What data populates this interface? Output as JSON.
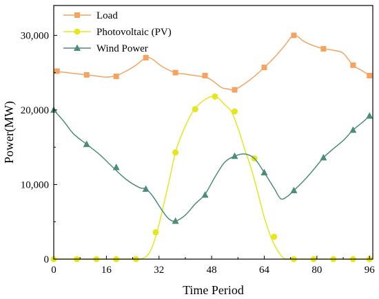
{
  "chart_data": {
    "type": "line",
    "xlabel": "Time Period",
    "ylabel": "Power(MW)",
    "xlim": [
      0,
      97
    ],
    "ylim": [
      0,
      34000
    ],
    "xticks": [
      0,
      16,
      32,
      48,
      64,
      80,
      96
    ],
    "xtick_labels": [
      "0",
      "16",
      "32",
      "48",
      "64",
      "80",
      "96"
    ],
    "yticks": [
      0,
      10000,
      20000,
      30000
    ],
    "ytick_labels": [
      "0",
      "10,000",
      "20,000",
      "30,000"
    ],
    "grid": false,
    "legend_position": "top-left",
    "series": [
      {
        "name": "Load",
        "color": "#F4A460",
        "marker": "square",
        "line": {
          "x": [
            0,
            4,
            8,
            12,
            16,
            19,
            22,
            25,
            28,
            30,
            33,
            37,
            40,
            43,
            46,
            48,
            51,
            53,
            55,
            58,
            61,
            64,
            67,
            70,
            73,
            76,
            79,
            82,
            85,
            88,
            91,
            94,
            96
          ],
          "y": [
            25200,
            25000,
            24800,
            24600,
            24400,
            24600,
            25200,
            26000,
            27000,
            26800,
            25800,
            25000,
            24800,
            24600,
            24400,
            24000,
            23000,
            22800,
            22700,
            23500,
            24500,
            25700,
            27000,
            28500,
            30000,
            29200,
            28600,
            28200,
            28000,
            27600,
            26000,
            25200,
            24600
          ]
        },
        "markers": {
          "x": [
            1,
            10,
            19,
            28,
            37,
            46,
            55,
            64,
            73,
            82,
            91,
            96
          ],
          "y": [
            25200,
            24700,
            24500,
            27000,
            25000,
            24600,
            22700,
            25700,
            30000,
            28200,
            26000,
            24600
          ]
        }
      },
      {
        "name": "Photovoltaic (PV)",
        "color": "#E6E61E",
        "marker": "circle",
        "line": {
          "x": [
            0,
            10,
            20,
            25,
            27,
            29,
            31,
            33,
            35,
            37,
            39,
            42,
            44,
            46,
            48,
            50,
            52,
            54,
            56,
            58,
            60,
            62,
            64,
            66,
            68,
            70,
            72,
            80,
            90,
            96
          ],
          "y": [
            0,
            0,
            0,
            0,
            100,
            800,
            3000,
            6500,
            10300,
            14300,
            16800,
            19600,
            20700,
            21400,
            21800,
            21600,
            20700,
            19800,
            17600,
            14800,
            12200,
            9000,
            5600,
            3000,
            1200,
            100,
            0,
            0,
            0,
            0
          ]
        },
        "markers": {
          "x": [
            0,
            7,
            13,
            19,
            25,
            31,
            37,
            43,
            49,
            55,
            61,
            67,
            73,
            79,
            85,
            91,
            96
          ],
          "y": [
            0,
            0,
            0,
            0,
            0,
            3600,
            14300,
            20100,
            21800,
            19800,
            13500,
            3000,
            0,
            0,
            0,
            0,
            0
          ]
        }
      },
      {
        "name": "Wind Power",
        "color": "#4C8C7A",
        "marker": "triangle",
        "line": {
          "x": [
            0,
            3,
            6,
            10,
            14,
            18,
            22,
            26,
            28,
            30,
            33,
            35,
            37,
            40,
            43,
            46,
            49,
            52,
            55,
            58,
            61,
            64,
            67,
            69,
            71,
            73,
            76,
            79,
            82,
            85,
            88,
            91,
            94,
            96
          ],
          "y": [
            20000,
            18500,
            16800,
            15400,
            14000,
            12300,
            10700,
            9600,
            9400,
            8500,
            6500,
            5400,
            5100,
            5900,
            7400,
            8700,
            11000,
            13000,
            13800,
            14100,
            13500,
            11600,
            9500,
            8100,
            8400,
            9200,
            10500,
            12000,
            13600,
            14800,
            15900,
            17300,
            18400,
            19200
          ]
        },
        "markers": {
          "x": [
            0,
            10,
            19,
            28,
            37,
            46,
            55,
            64,
            73,
            82,
            91,
            96
          ],
          "y": [
            20000,
            15400,
            12300,
            9400,
            5100,
            8600,
            13800,
            11600,
            9200,
            13600,
            17300,
            19200
          ]
        }
      }
    ]
  }
}
